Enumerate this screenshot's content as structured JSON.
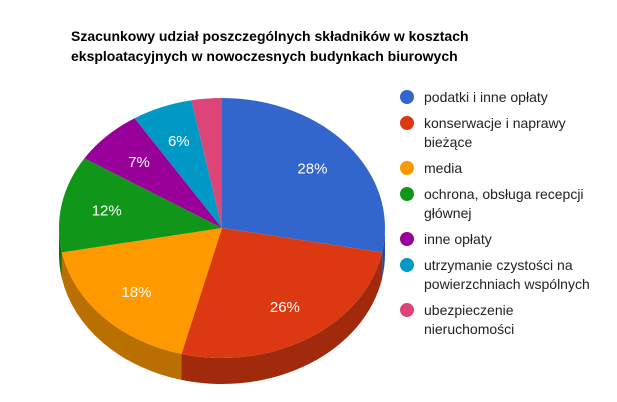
{
  "chart": {
    "title": "Szacunkowy udział poszczególnych składników w kosztach eksploatacyjnych w nowoczesnych budynkach biurowych",
    "title_lines": [
      "Szacunkowy udział poszczególnych składników w kosztach",
      "eksploatacyjnych w nowoczesnych budynkach biurowych"
    ]
  },
  "chart_data": {
    "type": "pie",
    "is3d": true,
    "title": "Szacunkowy udział poszczególnych składników w kosztach eksploatacyjnych w nowoczesnych budynkach biurowych",
    "legend_position": "right",
    "start_angle_deg": 0,
    "direction": "clockwise",
    "unit": "%",
    "label_color": "#ffffff",
    "slices": [
      {
        "label": "podatki i inne opłaty",
        "value": 28,
        "percent_label": "28%",
        "color": "#3366CC"
      },
      {
        "label": "konserwacje i naprawy bieżące",
        "value": 26,
        "percent_label": "26%",
        "color": "#DC3912"
      },
      {
        "label": "media",
        "value": 18,
        "percent_label": "18%",
        "color": "#FF9900"
      },
      {
        "label": "ochrona, obsługa recepcji głównej",
        "value": 12,
        "percent_label": "12%",
        "color": "#109618"
      },
      {
        "label": "inne opłaty",
        "value": 7,
        "percent_label": "7%",
        "color": "#990099"
      },
      {
        "label": "utrzymanie czystości na powierzchniach wspólnych",
        "value": 6,
        "percent_label": "6%",
        "color": "#0099C6"
      },
      {
        "label": "ubezpieczenie nieruchomości",
        "value": 3,
        "percent_label": null,
        "color": "#DD4477"
      }
    ]
  }
}
